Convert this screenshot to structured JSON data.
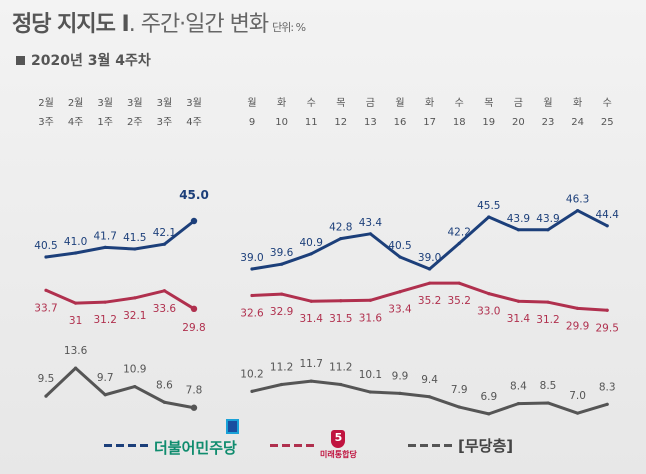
{
  "header": {
    "title_bold": "정당 지지도 Ⅰ",
    "title_light": ". 주간·일간 변화",
    "unit": "단위: %",
    "subtitle": "2020년 3월 4주차"
  },
  "colors": {
    "minju": "#1c3f7a",
    "mirae": "#b0304e",
    "none": "#555555",
    "axis_text": "#555555"
  },
  "legend": {
    "minju_label": "더불어민주당",
    "mirae_label": "미래통합당",
    "mirae_mark": "5",
    "none_label": "[무당층]"
  },
  "chart_data": [
    {
      "type": "line",
      "title": "주간",
      "categories": [
        [
          "2월",
          "3주"
        ],
        [
          "2월",
          "4주"
        ],
        [
          "3월",
          "1주"
        ],
        [
          "3월",
          "2주"
        ],
        [
          "3월",
          "3주"
        ],
        [
          "3월",
          "4주"
        ]
      ],
      "series": [
        {
          "name": "더불어민주당",
          "values": [
            40.5,
            41.0,
            41.7,
            41.5,
            42.1,
            45.0
          ]
        },
        {
          "name": "미래통합당",
          "values": [
            33.7,
            31,
            31.2,
            32.1,
            33.6,
            29.8
          ]
        },
        {
          "name": "무당층",
          "values": [
            9.5,
            13.6,
            9.7,
            10.9,
            8.6,
            7.8
          ]
        }
      ],
      "labels": [
        [
          "40.5",
          "41.0",
          "41.7",
          "41.5",
          "42.1",
          "45.0"
        ],
        [
          "33.7",
          "31",
          "31.2",
          "32.1",
          "33.6",
          "29.8"
        ],
        [
          "9.5",
          "13.6",
          "9.7",
          "10.9",
          "8.6",
          "7.8"
        ]
      ]
    },
    {
      "type": "line",
      "title": "일간",
      "categories": [
        [
          "월",
          "9"
        ],
        [
          "화",
          "10"
        ],
        [
          "수",
          "11"
        ],
        [
          "목",
          "12"
        ],
        [
          "금",
          "13"
        ],
        [
          "월",
          "16"
        ],
        [
          "화",
          "17"
        ],
        [
          "수",
          "18"
        ],
        [
          "목",
          "19"
        ],
        [
          "금",
          "20"
        ],
        [
          "월",
          "23"
        ],
        [
          "화",
          "24"
        ],
        [
          "수",
          "25"
        ]
      ],
      "series": [
        {
          "name": "더불어민주당",
          "values": [
            39.0,
            39.6,
            40.9,
            42.8,
            43.4,
            40.5,
            39.0,
            42.2,
            45.5,
            43.9,
            43.9,
            46.3,
            44.4
          ]
        },
        {
          "name": "미래통합당",
          "values": [
            32.6,
            32.9,
            31.4,
            31.5,
            31.6,
            33.4,
            35.2,
            35.2,
            33.0,
            31.4,
            31.2,
            29.9,
            29.5
          ]
        },
        {
          "name": "무당층",
          "values": [
            10.2,
            11.2,
            11.7,
            11.2,
            10.1,
            9.9,
            9.4,
            7.9,
            6.9,
            8.4,
            8.5,
            7.0,
            8.3
          ]
        }
      ],
      "labels": [
        [
          "39.0",
          "39.6",
          "40.9",
          "42.8",
          "43.4",
          "40.5",
          "39.0",
          "42.2",
          "45.5",
          "43.9",
          "43.9",
          "46.3",
          "44.4"
        ],
        [
          "32.6",
          "32.9",
          "31.4",
          "31.5",
          "31.6",
          "33.4",
          "35.2",
          "35.2",
          "33.0",
          "31.4",
          "31.2",
          "29.9",
          "29.5"
        ],
        [
          "10.2",
          "11.2",
          "11.7",
          "11.2",
          "10.1",
          "9.9",
          "9.4",
          "7.9",
          "6.9",
          "8.4",
          "8.5",
          "7.0",
          "8.3"
        ]
      ]
    }
  ]
}
